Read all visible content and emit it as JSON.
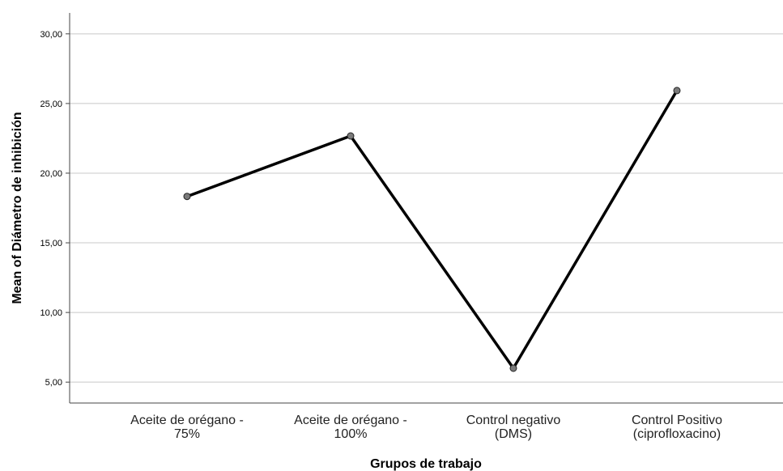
{
  "chart_data": {
    "type": "line",
    "title": "",
    "xlabel": "Grupos de trabajo",
    "ylabel": "Mean of Diámetro de inhibición",
    "categories": [
      [
        "Aceite de orégano -",
        "75%"
      ],
      [
        "Aceite de orégano -",
        "100%"
      ],
      [
        "Control negativo",
        "(DMS)"
      ],
      [
        "Control Positivo",
        "(ciprofloxacino)"
      ]
    ],
    "series": [
      {
        "values": [
          18.33,
          22.67,
          6.0,
          25.93
        ]
      }
    ],
    "yticks": [
      5,
      10,
      15,
      20,
      25,
      30
    ],
    "ytick_labels": [
      "5,00",
      "10,00",
      "15,00",
      "20,00",
      "25,00",
      "30,00"
    ],
    "ylim": [
      3.5,
      31.5
    ],
    "grid": true,
    "legend": "none",
    "colors": {
      "line": "#000000",
      "marker": "#7a7a7a",
      "grid": "#c8c8c8",
      "axis": "#444444"
    }
  }
}
